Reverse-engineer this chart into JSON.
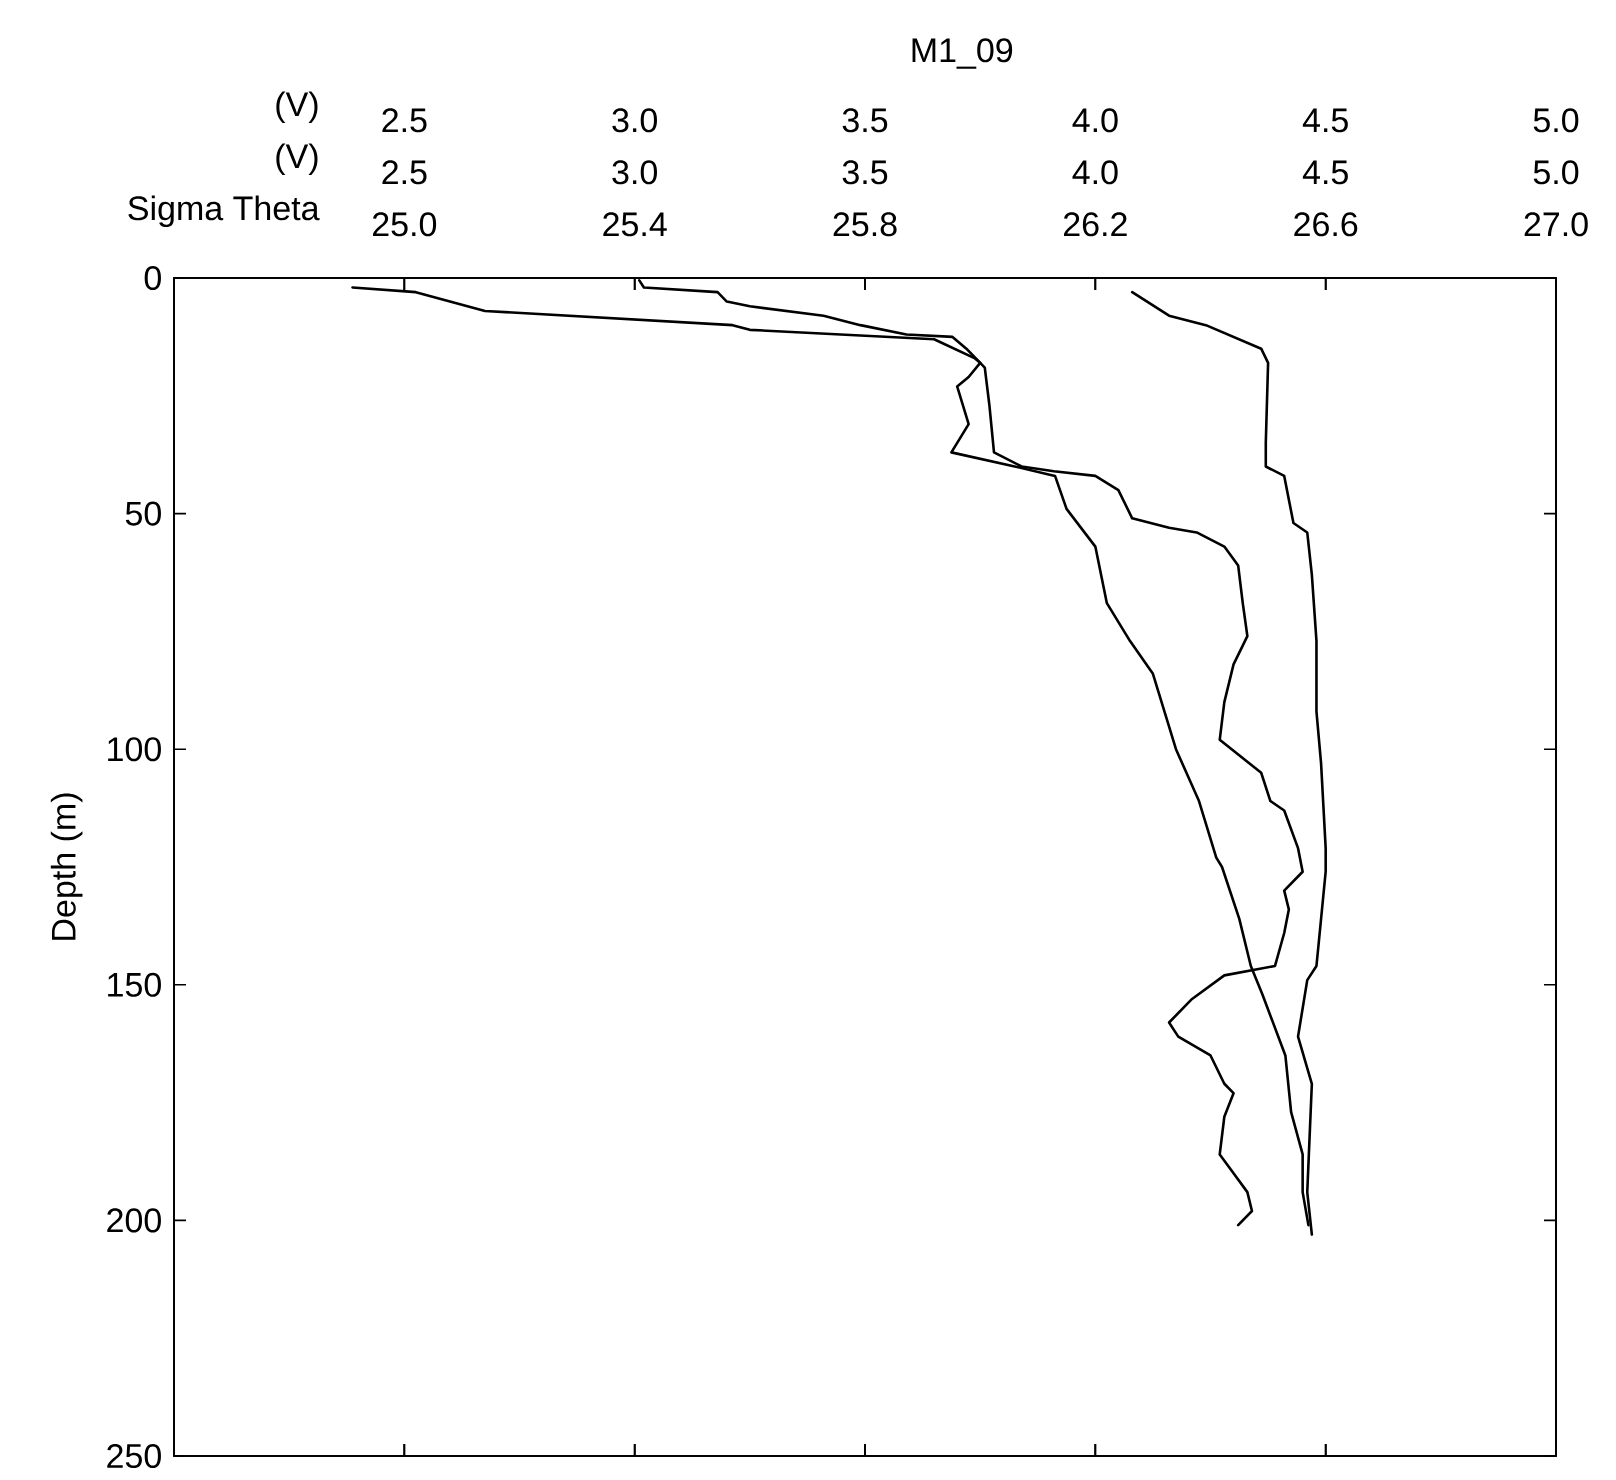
{
  "chart_data": [
    {
      "type": "line",
      "title": "M1_09",
      "xlabel": "(V)",
      "x2label": "(V)",
      "ylabel": "Depth (m)",
      "xlim": [
        2.0,
        5.0
      ],
      "xticks": [
        {
          "value": 2.5,
          "label": "2.5"
        },
        {
          "value": 3.0,
          "label": "3.0"
        },
        {
          "value": 3.5,
          "label": "3.5"
        },
        {
          "value": 4.0,
          "label": "4.0"
        },
        {
          "value": 4.5,
          "label": "4.5"
        },
        {
          "value": 5.0,
          "label": "5.0"
        }
      ],
      "x2lim": [
        2.0,
        5.0
      ],
      "x2ticks": [
        {
          "value": 2.5,
          "label": "2.5"
        },
        {
          "value": 3.0,
          "label": "3.0"
        },
        {
          "value": 3.5,
          "label": "3.5"
        },
        {
          "value": 4.0,
          "label": "4.0"
        },
        {
          "value": 4.5,
          "label": "4.5"
        },
        {
          "value": 5.0,
          "label": "5.0"
        }
      ],
      "ylim": [
        250,
        0
      ],
      "yticks": [
        0,
        50,
        100,
        150,
        200,
        250
      ],
      "marker": "none",
      "line_style": "solid",
      "series": [
        {
          "color": "#000000",
          "x": [
            4.08,
            4.16,
            4.24,
            4.36,
            4.375,
            4.37,
            4.37,
            4.41,
            4.43,
            4.46,
            4.47,
            4.48,
            4.48,
            4.49,
            4.5,
            4.5,
            4.49,
            4.48,
            4.46,
            4.44,
            4.47,
            4.46,
            4.47
          ],
          "values": [
            3,
            8,
            10,
            15,
            18,
            35,
            40,
            42,
            52,
            54,
            63,
            77,
            92,
            103,
            121,
            126,
            136,
            146,
            149,
            161,
            171,
            194,
            203
          ]
        },
        {
          "axis": "x2",
          "color": "#000000",
          "x": [
            3.01,
            3.02,
            3.18,
            3.2,
            3.25,
            3.41,
            3.49,
            3.59,
            3.69,
            3.72,
            3.75,
            3.76,
            3.77,
            3.78,
            3.84,
            3.91,
            4.0,
            4.05,
            4.08,
            4.16,
            4.22,
            4.28,
            4.31,
            4.32,
            4.33,
            4.3,
            4.28,
            4.27,
            4.36,
            4.38,
            4.41,
            4.44,
            4.45,
            4.41,
            4.42,
            4.41,
            4.39,
            4.28,
            4.21,
            4.16,
            4.18,
            4.25,
            4.28,
            4.3,
            4.28,
            4.27,
            4.3,
            4.33,
            4.34,
            4.31
          ],
          "values": [
            0.5,
            2,
            3,
            5,
            6,
            8,
            10,
            12,
            12.5,
            15,
            18,
            19,
            27,
            37,
            40,
            41,
            42,
            45,
            51,
            53,
            54,
            57,
            61,
            69,
            76,
            82,
            90,
            98,
            105,
            111,
            113,
            121,
            126,
            130,
            134,
            139,
            146,
            148,
            153,
            158,
            161,
            165,
            171,
            173,
            178,
            186,
            190,
            194,
            198,
            201
          ]
        }
      ]
    },
    {
      "type": "line",
      "xlabel": "Sigma Theta",
      "xlim": [
        24.6,
        27.0
      ],
      "xticks": [
        {
          "value": 25.0,
          "label": "25.0"
        },
        {
          "value": 25.4,
          "label": "25.4"
        },
        {
          "value": 25.8,
          "label": "25.8"
        },
        {
          "value": 26.2,
          "label": "26.2"
        },
        {
          "value": 26.6,
          "label": "26.6"
        },
        {
          "value": 27.0,
          "label": "27.0"
        }
      ],
      "ylim": [
        250,
        0
      ],
      "tick_labels": "x",
      "marker": "none",
      "line_style": "solid",
      "series": [
        {
          "color": "#000000",
          "x": [
            24.91,
            25.02,
            25.14,
            25.57,
            25.6,
            25.92,
            25.99,
            26.0,
            25.98,
            25.96,
            25.98,
            25.95,
            26.06,
            26.13,
            26.15,
            26.2,
            26.22,
            26.26,
            26.3,
            26.34,
            26.38,
            26.41,
            26.42,
            26.45,
            26.47,
            26.49,
            26.53,
            26.54,
            26.56,
            26.56,
            26.57
          ],
          "values": [
            2,
            3,
            7,
            10,
            11,
            13,
            17,
            18,
            21,
            23,
            31,
            37,
            40,
            42,
            49,
            57,
            69,
            77,
            84,
            100,
            111,
            123,
            125,
            136,
            146,
            152,
            165,
            177,
            186,
            194,
            201
          ]
        }
      ]
    }
  ]
}
